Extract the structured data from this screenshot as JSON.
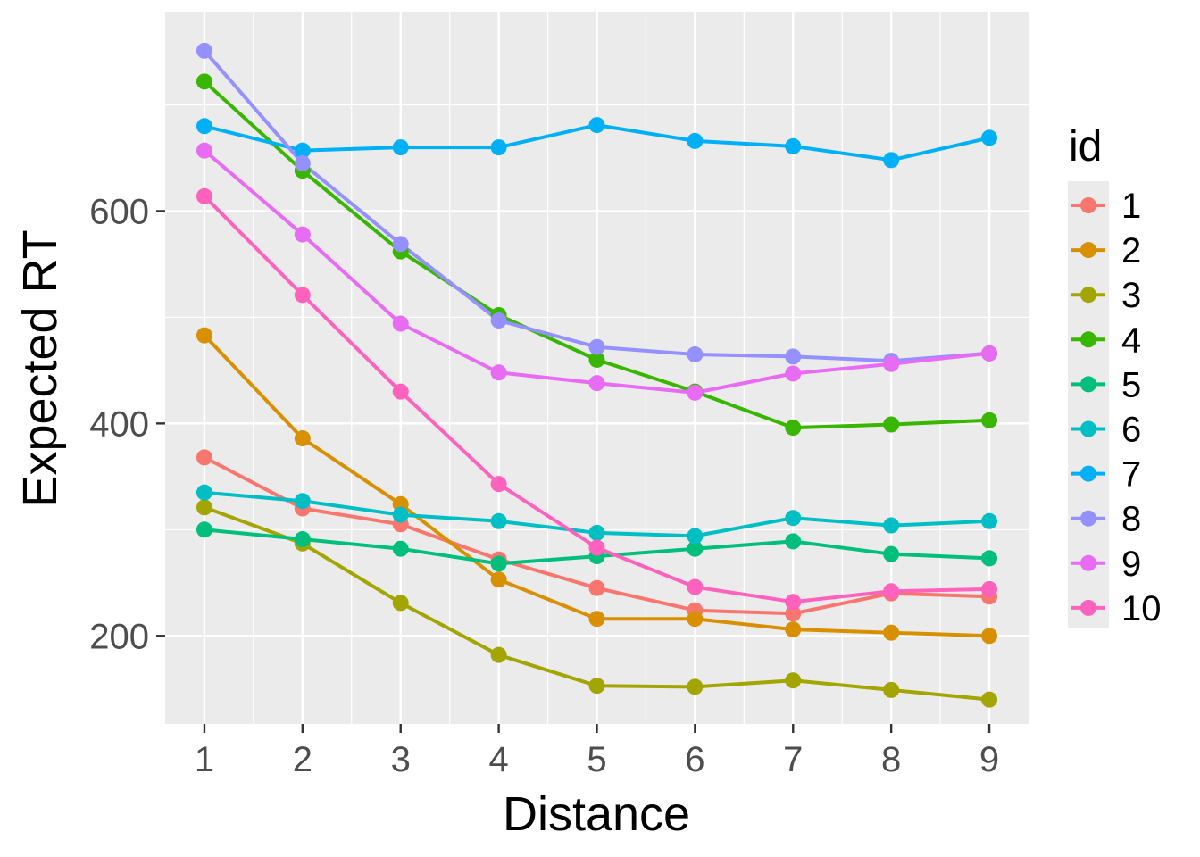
{
  "chart_data": {
    "type": "line",
    "title": "",
    "xlabel": "Distance",
    "ylabel": "Expected RT",
    "x": [
      1,
      2,
      3,
      4,
      5,
      6,
      7,
      8,
      9
    ],
    "x_tick_labels": [
      "1",
      "2",
      "3",
      "4",
      "5",
      "6",
      "7",
      "8",
      "9"
    ],
    "y_ticks": [
      200,
      400,
      600
    ],
    "y_tick_labels": [
      "200",
      "400",
      "600"
    ],
    "xlim": [
      0.6,
      9.4
    ],
    "ylim": [
      117,
      787
    ],
    "grid": true,
    "legend": {
      "title": "id",
      "position": "right"
    },
    "series": [
      {
        "name": "1",
        "color": "#F8766D",
        "values": [
          368,
          320,
          305,
          272,
          245,
          224,
          221,
          240,
          237
        ]
      },
      {
        "name": "2",
        "color": "#D89000",
        "values": [
          483,
          386,
          324,
          253,
          216,
          216,
          206,
          203,
          200
        ]
      },
      {
        "name": "3",
        "color": "#A3A500",
        "values": [
          321,
          287,
          231,
          182,
          153,
          152,
          158,
          149,
          140
        ]
      },
      {
        "name": "4",
        "color": "#39B600",
        "values": [
          722,
          638,
          562,
          502,
          460,
          430,
          396,
          399,
          403
        ]
      },
      {
        "name": "5",
        "color": "#00BF7D",
        "values": [
          300,
          291,
          282,
          268,
          275,
          282,
          289,
          277,
          273
        ]
      },
      {
        "name": "6",
        "color": "#00BFC4",
        "values": [
          335,
          327,
          314,
          308,
          297,
          294,
          311,
          304,
          308
        ]
      },
      {
        "name": "7",
        "color": "#00B0F6",
        "values": [
          680,
          657,
          660,
          660,
          681,
          666,
          661,
          648,
          669
        ]
      },
      {
        "name": "8",
        "color": "#9590FF",
        "values": [
          751,
          645,
          569,
          497,
          472,
          465,
          463,
          459,
          466
        ]
      },
      {
        "name": "9",
        "color": "#E76BF3",
        "values": [
          657,
          578,
          494,
          448,
          438,
          429,
          447,
          456,
          466
        ]
      },
      {
        "name": "10",
        "color": "#FF62BC",
        "values": [
          614,
          521,
          430,
          343,
          283,
          246,
          232,
          242,
          244
        ]
      }
    ]
  }
}
